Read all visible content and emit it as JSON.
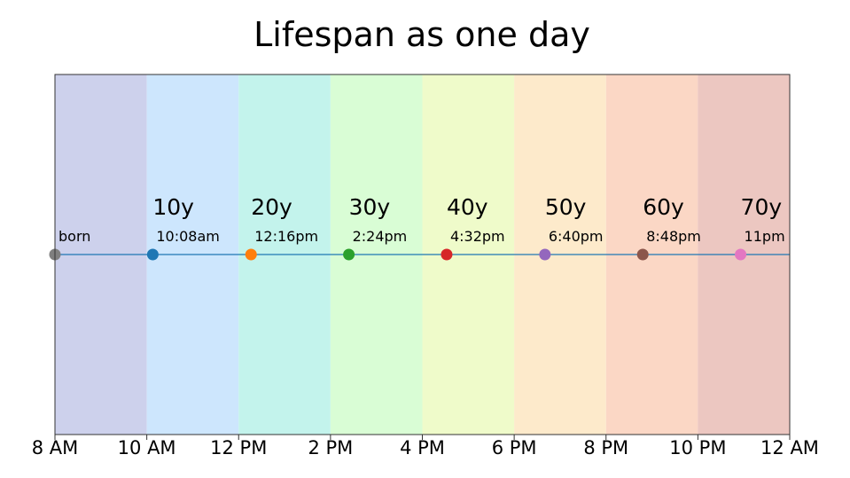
{
  "chart_data": {
    "type": "scatter",
    "title": "Lifespan as one day",
    "xlabel": "",
    "ylabel": "",
    "x_axis": {
      "unit": "hours since midnight",
      "range": [
        8,
        24
      ],
      "ticks": [
        {
          "value": 8,
          "label": "8 AM"
        },
        {
          "value": 10,
          "label": "10 AM"
        },
        {
          "value": 12,
          "label": "12 PM"
        },
        {
          "value": 14,
          "label": "2 PM"
        },
        {
          "value": 16,
          "label": "4 PM"
        },
        {
          "value": 18,
          "label": "6 PM"
        },
        {
          "value": 20,
          "label": "8 PM"
        },
        {
          "value": 22,
          "label": "10 PM"
        },
        {
          "value": 24,
          "label": "12 AM"
        }
      ]
    },
    "y_axis_visible": false,
    "grid": false,
    "bands": [
      {
        "from": 8,
        "to": 10,
        "color": "#cdd1ec"
      },
      {
        "from": 10,
        "to": 12,
        "color": "#cde6fd"
      },
      {
        "from": 12,
        "to": 14,
        "color": "#c3f3ec"
      },
      {
        "from": 14,
        "to": 16,
        "color": "#d9fdd5"
      },
      {
        "from": 16,
        "to": 18,
        "color": "#effbca"
      },
      {
        "from": 18,
        "to": 20,
        "color": "#fdeacb"
      },
      {
        "from": 20,
        "to": 22,
        "color": "#fbd7c5"
      },
      {
        "from": 22,
        "to": 24,
        "color": "#ecc7c1"
      }
    ],
    "line_color": "#1f77b4",
    "points": [
      {
        "age": "",
        "time": "born",
        "x": 8.0,
        "color": "#7f7f7f"
      },
      {
        "age": "10y",
        "time": "10:08am",
        "x": 10.13,
        "color": "#1f77b4"
      },
      {
        "age": "20y",
        "time": "12:16pm",
        "x": 12.27,
        "color": "#ff7f0e"
      },
      {
        "age": "30y",
        "time": "2:24pm",
        "x": 14.4,
        "color": "#2ca02c"
      },
      {
        "age": "40y",
        "time": "4:32pm",
        "x": 16.53,
        "color": "#d62728"
      },
      {
        "age": "50y",
        "time": "6:40pm",
        "x": 18.67,
        "color": "#9467bd"
      },
      {
        "age": "60y",
        "time": "8:48pm",
        "x": 20.8,
        "color": "#8c564b"
      },
      {
        "age": "70y",
        "time": "11pm",
        "x": 22.93,
        "color": "#e377c2"
      }
    ]
  }
}
